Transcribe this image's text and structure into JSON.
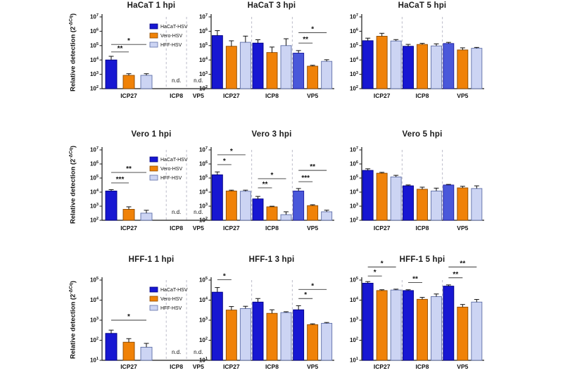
{
  "figure": {
    "ylabel": {
      "prefix": "Relative detection (2",
      "sup": "-ΔCq",
      "suffix": ")"
    },
    "nd_label": "n.d.",
    "gene_labels": [
      "ICP27",
      "ICP8",
      "VP5"
    ],
    "series": [
      {
        "name": "HaCaT-HSV",
        "color": "#1717d2",
        "border": "#000080"
      },
      {
        "name": "Vero-HSV",
        "color": "#f08207",
        "border": "#8c4a00"
      },
      {
        "name": "HFF-HSV",
        "color": "#ccd4f3",
        "border": "#5f6fa8"
      }
    ],
    "accent_lightblue_bar": "#4a58da",
    "separator_color": "#b3b3c2",
    "axis_color": "#1a1a1a"
  },
  "chart_data": [
    {
      "type": "bar",
      "title": "HaCaT 1 hpi",
      "log_ymin": 2,
      "log_ymax": 7,
      "legend": true,
      "groups": [
        {
          "label": "ICP27",
          "values": [
            10000.0,
            850.0,
            850.0
          ],
          "err": [
            1.8,
            1.3,
            1.3
          ]
        },
        {
          "label": "ICP8",
          "nd": true
        },
        {
          "label": "VP5",
          "nd": true
        }
      ],
      "sig": [
        {
          "group": 0,
          "from": 0,
          "to": 1,
          "stars": "**",
          "y": 36000.0
        },
        {
          "group": 0,
          "from": 0,
          "to": 2,
          "stars": "*",
          "y": 120000.0
        }
      ]
    },
    {
      "type": "bar",
      "title": "HaCaT 3 hpi",
      "log_ymin": 2,
      "log_ymax": 7,
      "legend": false,
      "groups": [
        {
          "label": "ICP27",
          "values": [
            500000.0,
            90000.0,
            170000.0
          ],
          "err": [
            2.2,
            2.4,
            2.7
          ]
        },
        {
          "label": "ICP8",
          "values": [
            150000.0,
            33000.0,
            100000.0
          ],
          "err": [
            1.7,
            2.4,
            3.0
          ]
        },
        {
          "label": "VP5",
          "values": [
            30000.0,
            3700.0,
            8000.0
          ],
          "err": [
            1.5,
            1.15,
            1.3
          ]
        }
      ],
      "sig": [
        {
          "group": 2,
          "from": 0,
          "to": 1,
          "stars": "**",
          "y": 150000.0
        },
        {
          "group": 2,
          "from": 0,
          "to": 2,
          "stars": "*",
          "y": 800000.0
        }
      ],
      "overrides": [
        {
          "group": 2,
          "bar": 0,
          "color": "#4a58da",
          "border": "#1c1c9e"
        }
      ]
    },
    {
      "type": "bar",
      "title": "HaCaT 5 hpi",
      "log_ymin": 2,
      "log_ymax": 7,
      "legend": false,
      "groups": [
        {
          "label": "ICP27",
          "values": [
            220000.0,
            450000.0,
            210000.0
          ],
          "err": [
            1.5,
            1.6,
            1.25
          ]
        },
        {
          "label": "ICP8",
          "values": [
            90000.0,
            120000.0,
            95000.0
          ],
          "err": [
            1.35,
            1.2,
            1.4
          ]
        },
        {
          "label": "VP5",
          "values": [
            140000.0,
            50000.0,
            65000.0
          ],
          "err": [
            1.2,
            1.4,
            1.15
          ]
        }
      ],
      "sig": [],
      "overrides": [
        {
          "group": 2,
          "bar": 0,
          "color": "#4a58da",
          "border": "#1c1c9e"
        }
      ]
    },
    {
      "type": "bar",
      "title": "Vero 1 hpi",
      "log_ymin": 2,
      "log_ymax": 7,
      "legend": true,
      "groups": [
        {
          "label": "ICP27",
          "values": [
            12000.0,
            600.0,
            320.0
          ],
          "err": [
            1.25,
            1.5,
            1.6
          ]
        },
        {
          "label": "ICP8",
          "nd": true
        },
        {
          "label": "VP5",
          "nd": true
        }
      ],
      "sig": [
        {
          "group": 0,
          "from": 0,
          "to": 1,
          "stars": "***",
          "y": 45000.0
        },
        {
          "group": 0,
          "from": 0,
          "to": 2,
          "stars": "**",
          "y": 250000.0
        }
      ]
    },
    {
      "type": "bar",
      "title": "Vero 3 hpi",
      "log_ymin": 2,
      "log_ymax": 7,
      "legend": false,
      "groups": [
        {
          "label": "ICP27",
          "values": [
            170000.0,
            12000.0,
            11500.0
          ],
          "err": [
            1.6,
            1.15,
            1.2
          ]
        },
        {
          "label": "ICP8",
          "values": [
            3300.0,
            900.0,
            250.0
          ],
          "err": [
            1.5,
            1.1,
            1.6
          ]
        },
        {
          "label": "VP5",
          "values": [
            12000.0,
            1100.0,
            400.0
          ],
          "err": [
            1.5,
            1.15,
            1.3
          ]
        }
      ],
      "sig": [
        {
          "group": 0,
          "from": 0,
          "to": 1,
          "stars": "*",
          "y": 900000.0
        },
        {
          "group": 0,
          "from": 0,
          "to": 2,
          "stars": "*",
          "y": 4500000.0
        },
        {
          "group": 1,
          "from": 0,
          "to": 1,
          "stars": "**",
          "y": 20000.0
        },
        {
          "group": 1,
          "from": 0,
          "to": 2,
          "stars": "*",
          "y": 90000.0
        },
        {
          "group": 2,
          "from": 0,
          "to": 1,
          "stars": "***",
          "y": 55000.0
        },
        {
          "group": 2,
          "from": 0,
          "to": 2,
          "stars": "**",
          "y": 350000.0
        }
      ],
      "overrides": [
        {
          "group": 2,
          "bar": 0,
          "color": "#4a58da",
          "border": "#1c1c9e"
        }
      ]
    },
    {
      "type": "bar",
      "title": "Vero 5 hpi",
      "log_ymin": 2,
      "log_ymax": 7,
      "legend": false,
      "groups": [
        {
          "label": "ICP27",
          "values": [
            350000.0,
            220000.0,
            120000.0
          ],
          "err": [
            1.3,
            1.15,
            1.3
          ]
        },
        {
          "label": "ICP8",
          "values": [
            28000.0,
            16000.0,
            12000.0
          ],
          "err": [
            1.15,
            1.4,
            1.6
          ]
        },
        {
          "label": "VP5",
          "values": [
            32000.0,
            20000.0,
            18000.0
          ],
          "err": [
            1.1,
            1.3,
            1.55
          ]
        }
      ],
      "sig": [],
      "overrides": [
        {
          "group": 2,
          "bar": 0,
          "color": "#4a58da",
          "border": "#1c1c9e"
        }
      ]
    },
    {
      "type": "bar",
      "title": "HFF-1 1 hpi",
      "log_ymin": 1,
      "log_ymax": 5,
      "legend": true,
      "groups": [
        {
          "label": "ICP27",
          "values": [
            220.0,
            80.0,
            45.0
          ],
          "err": [
            1.45,
            1.5,
            1.55
          ]
        },
        {
          "label": "ICP8",
          "nd": true
        },
        {
          "label": "VP5",
          "nd": true
        }
      ],
      "sig": [
        {
          "group": 0,
          "from": 0,
          "to": 2,
          "stars": "*",
          "y": 1000.0
        }
      ]
    },
    {
      "type": "bar",
      "title": "HFF-1 3 hpi",
      "log_ymin": 1,
      "log_ymax": 5,
      "legend": false,
      "groups": [
        {
          "label": "ICP27",
          "values": [
            25000.0,
            3200.0,
            3800.0
          ],
          "err": [
            1.7,
            1.5,
            1.3
          ]
        },
        {
          "label": "ICP8",
          "values": [
            8000.0,
            2200.0,
            2400.0
          ],
          "err": [
            1.5,
            1.5,
            1.1
          ]
        },
        {
          "label": "VP5",
          "values": [
            3300.0,
            600.0,
            700.0
          ],
          "err": [
            1.6,
            1.1,
            1.1
          ]
        }
      ],
      "sig": [
        {
          "group": 0,
          "from": 0,
          "to": 1,
          "stars": "*",
          "y": 105000.0
        },
        {
          "group": 2,
          "from": 0,
          "to": 1,
          "stars": "*",
          "y": 12000.0
        },
        {
          "group": 2,
          "from": 0,
          "to": 2,
          "stars": "*",
          "y": 34000.0
        }
      ]
    },
    {
      "type": "bar",
      "title": "HFF-1 5 hpi",
      "log_ymin": 1,
      "log_ymax": 5,
      "legend": false,
      "groups": [
        {
          "label": "ICP27",
          "values": [
            70000.0,
            30000.0,
            32000.0
          ],
          "err": [
            1.2,
            1.1,
            1.1
          ]
        },
        {
          "label": "ICP8",
          "values": [
            30000.0,
            11000.0,
            15000.0
          ],
          "err": [
            1.1,
            1.25,
            1.35
          ]
        },
        {
          "label": "VP5",
          "values": [
            50000.0,
            4500.0,
            8000.0
          ],
          "err": [
            1.15,
            1.35,
            1.35
          ]
        }
      ],
      "sig": [
        {
          "group": 0,
          "from": 0,
          "to": 1,
          "stars": "*",
          "y": 160000.0
        },
        {
          "group": 0,
          "from": 0,
          "to": 2,
          "stars": "*",
          "y": 450000.0
        },
        {
          "group": 1,
          "from": 0,
          "to": 1,
          "stars": "**",
          "y": 75000.0
        },
        {
          "group": 2,
          "from": 0,
          "to": 1,
          "stars": "**",
          "y": 130000.0
        },
        {
          "group": 2,
          "from": 0,
          "to": 2,
          "stars": "**",
          "y": 450000.0
        }
      ]
    }
  ]
}
